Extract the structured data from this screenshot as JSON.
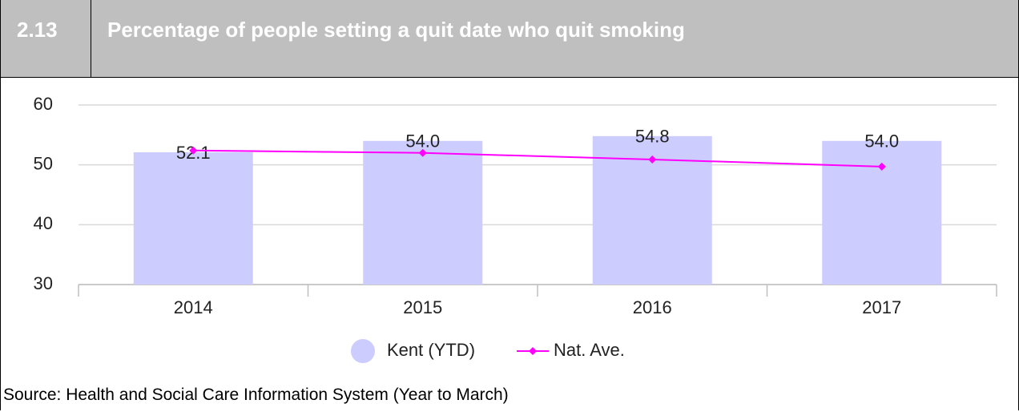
{
  "header": {
    "number": "2.13",
    "title": "Percentage of people setting a quit date who quit smoking"
  },
  "chart_data": {
    "type": "bar",
    "categories": [
      "2014",
      "2015",
      "2016",
      "2017"
    ],
    "series": [
      {
        "name": "Kent (YTD)",
        "type": "bar",
        "color": "#ccccff",
        "values": [
          52.1,
          54.0,
          54.8,
          54.0
        ],
        "value_labels": [
          "52.1",
          "54.0",
          "54.8",
          "54.0"
        ]
      },
      {
        "name": "Nat. Ave.",
        "type": "line",
        "color": "#ff00ff",
        "values": [
          52.4,
          52.0,
          50.9,
          49.7
        ]
      }
    ],
    "ylim": [
      30,
      60
    ],
    "yticks": [
      30,
      40,
      50,
      60
    ],
    "grid": true,
    "legend": "bottom"
  },
  "source": "Source: Health and Social Care Information System (Year to March)"
}
